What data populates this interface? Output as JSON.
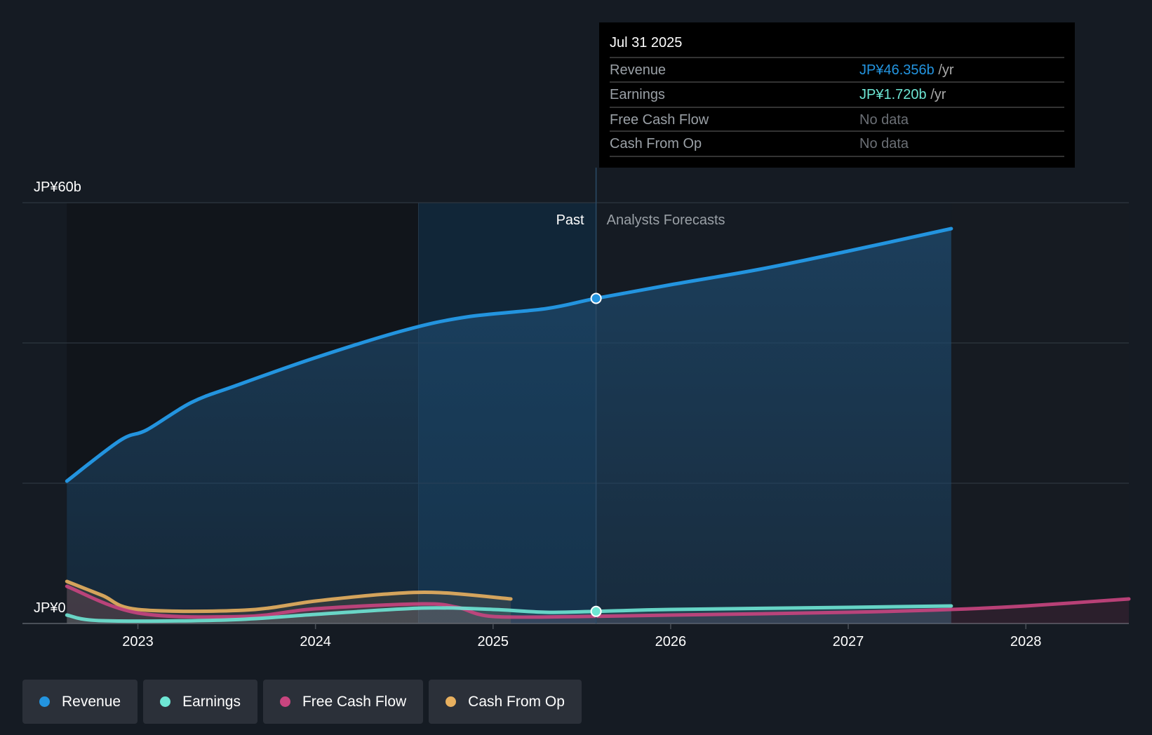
{
  "chart_data": {
    "type": "line",
    "title": "",
    "y_axis": {
      "labels": [
        "JP¥60b",
        "JP¥0"
      ],
      "ylim": [
        0,
        60
      ],
      "gridlines": [
        0,
        20,
        40,
        60
      ],
      "unit": "JP¥ billions"
    },
    "x_axis": {
      "ticks": [
        "2023",
        "2024",
        "2025",
        "2026",
        "2027",
        "2028"
      ],
      "xlim": [
        2022.35,
        2028.58
      ]
    },
    "regions": {
      "past_label": "Past",
      "forecast_label": "Analysts Forecasts",
      "past_boundary": 2025.58,
      "highlight_start": 2024.58
    },
    "series": [
      {
        "name": "Revenue",
        "color": "#2394df",
        "forecast_end": 2027.58,
        "points": [
          [
            2022.6,
            20.3
          ],
          [
            2022.9,
            26.1
          ],
          [
            2023.05,
            27.6
          ],
          [
            2023.3,
            31.5
          ],
          [
            2023.55,
            33.9
          ],
          [
            2024.0,
            37.9
          ],
          [
            2024.5,
            41.8
          ],
          [
            2024.85,
            43.7
          ],
          [
            2025.3,
            44.9
          ],
          [
            2025.58,
            46.356
          ],
          [
            2026.0,
            48.3
          ],
          [
            2026.5,
            50.5
          ],
          [
            2027.0,
            53.1
          ],
          [
            2027.58,
            56.3
          ]
        ]
      },
      {
        "name": "Earnings",
        "color": "#6ee6d4",
        "points": [
          [
            2022.6,
            1.2
          ],
          [
            2022.8,
            0.4
          ],
          [
            2023.5,
            0.5
          ],
          [
            2024.0,
            1.3
          ],
          [
            2024.6,
            2.2
          ],
          [
            2025.0,
            2.0
          ],
          [
            2025.3,
            1.6
          ],
          [
            2025.58,
            1.72
          ],
          [
            2026.0,
            2.0
          ],
          [
            2027.0,
            2.3
          ],
          [
            2027.58,
            2.5
          ]
        ]
      },
      {
        "name": "Free Cash Flow",
        "color": "#c9457f",
        "points": [
          [
            2022.6,
            5.3
          ],
          [
            2023.0,
            1.5
          ],
          [
            2023.6,
            1.0
          ],
          [
            2024.0,
            2.1
          ],
          [
            2024.6,
            2.8
          ],
          [
            2024.8,
            2.3
          ],
          [
            2025.0,
            1.0
          ],
          [
            2025.5,
            1.0
          ],
          [
            2026.0,
            1.2
          ],
          [
            2027.0,
            1.6
          ],
          [
            2027.58,
            2.0
          ],
          [
            2028.0,
            2.5
          ],
          [
            2028.58,
            3.5
          ]
        ]
      },
      {
        "name": "Cash From Op",
        "color": "#e8b05f",
        "points": [
          [
            2022.6,
            6.0
          ],
          [
            2022.8,
            4.0
          ],
          [
            2023.0,
            2.0
          ],
          [
            2023.6,
            1.9
          ],
          [
            2024.0,
            3.2
          ],
          [
            2024.4,
            4.2
          ],
          [
            2024.7,
            4.4
          ],
          [
            2025.1,
            3.5
          ]
        ]
      }
    ],
    "tooltip": {
      "date": "Jul 31 2025",
      "rows": [
        {
          "label": "Revenue",
          "value": "JP¥46.356b",
          "unit": " /yr",
          "color": "#2394df"
        },
        {
          "label": "Earnings",
          "value": "JP¥1.720b",
          "unit": " /yr",
          "color": "#6ee6d4"
        },
        {
          "label": "Free Cash Flow",
          "value": "No data",
          "unit": "",
          "color": "#6b6f75"
        },
        {
          "label": "Cash From Op",
          "value": "No data",
          "unit": "",
          "color": "#6b6f75"
        }
      ]
    },
    "legend": [
      {
        "label": "Revenue",
        "color": "#2394df"
      },
      {
        "label": "Earnings",
        "color": "#6ee6d4"
      },
      {
        "label": "Free Cash Flow",
        "color": "#c9457f"
      },
      {
        "label": "Cash From Op",
        "color": "#e8b05f"
      }
    ]
  }
}
